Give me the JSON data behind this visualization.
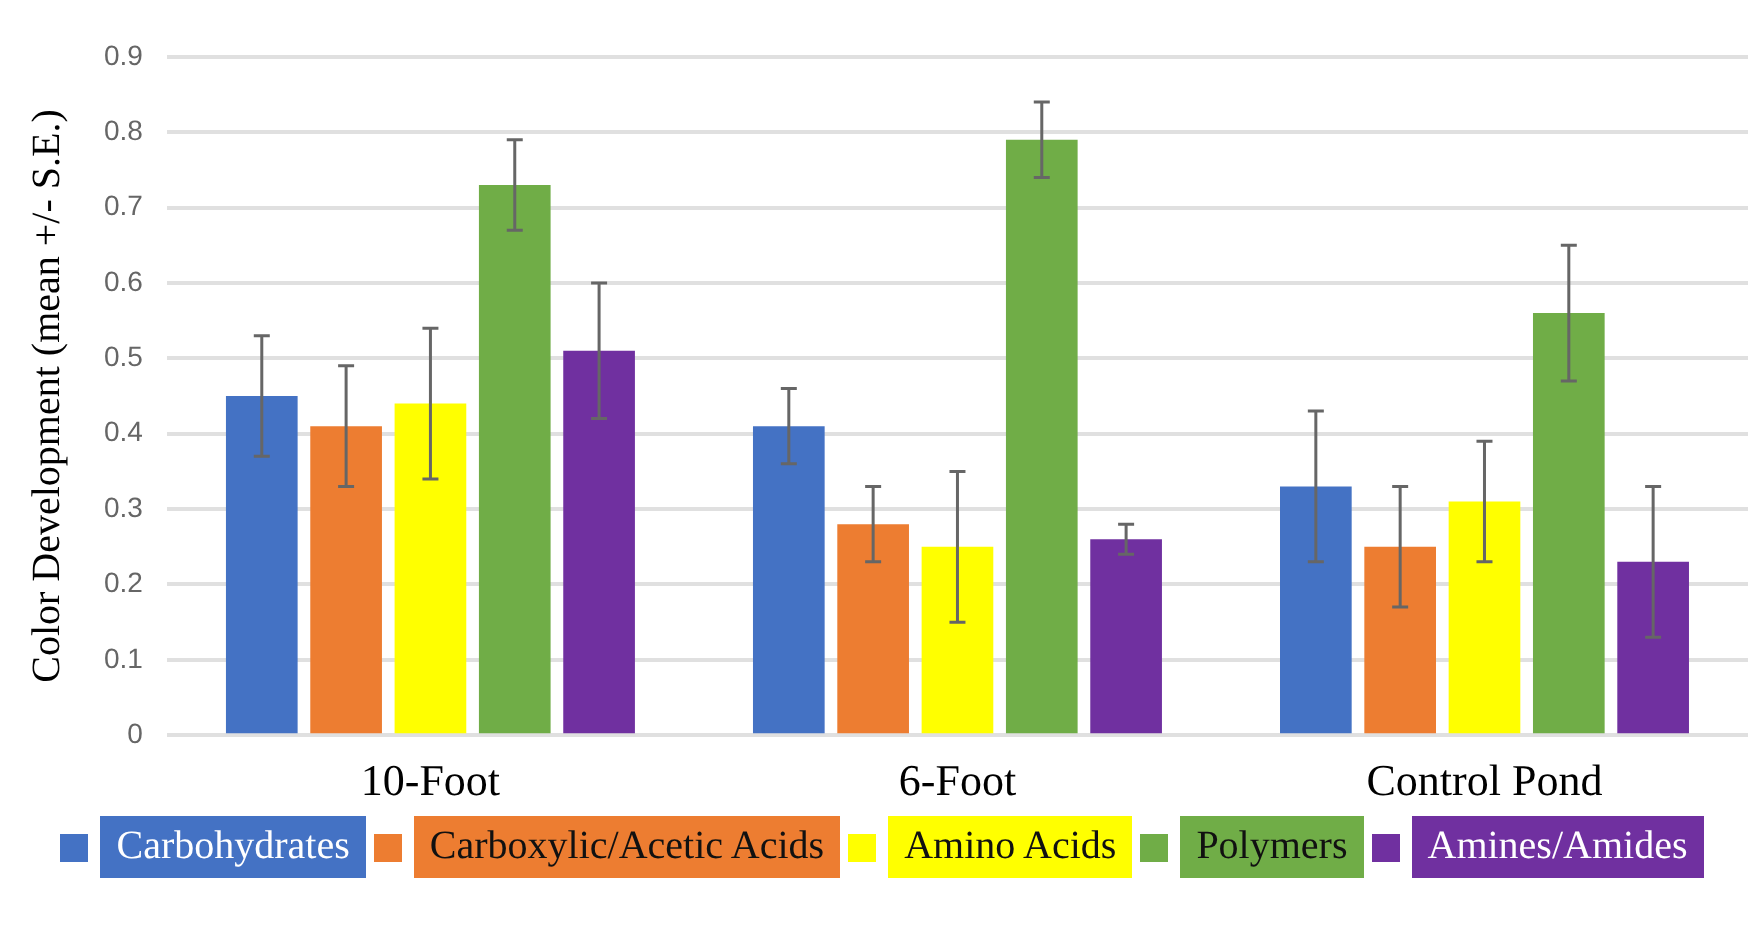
{
  "chart_data": {
    "type": "bar",
    "ylabel": "Color Development (mean +/- S.E.)",
    "categories": [
      "10-Foot",
      "6-Foot",
      "Control Pond"
    ],
    "series": [
      {
        "name": "Carbohydrates",
        "color": "#4472c4",
        "values": [
          0.45,
          0.41,
          0.33
        ],
        "errors": [
          0.08,
          0.05,
          0.1
        ]
      },
      {
        "name": "Carboxylic/Acetic Acids",
        "color": "#ed7d31",
        "values": [
          0.41,
          0.28,
          0.25
        ],
        "errors": [
          0.08,
          0.05,
          0.08
        ]
      },
      {
        "name": "Amino Acids",
        "color": "#ffff00",
        "values": [
          0.44,
          0.25,
          0.31
        ],
        "errors": [
          0.1,
          0.1,
          0.08
        ]
      },
      {
        "name": "Polymers",
        "color": "#70ad47",
        "values": [
          0.73,
          0.79,
          0.56
        ],
        "errors": [
          0.06,
          0.05,
          0.09
        ]
      },
      {
        "name": "Amines/Amides",
        "color": "#7030a0",
        "values": [
          0.51,
          0.26,
          0.23
        ],
        "errors": [
          0.09,
          0.02,
          0.1
        ]
      }
    ],
    "ylim": [
      0,
      0.9
    ],
    "yticks": [
      0,
      0.1,
      0.2,
      0.3,
      0.4,
      0.5,
      0.6,
      0.7,
      0.8,
      0.9
    ],
    "grid": "y",
    "legend": "bottom"
  }
}
